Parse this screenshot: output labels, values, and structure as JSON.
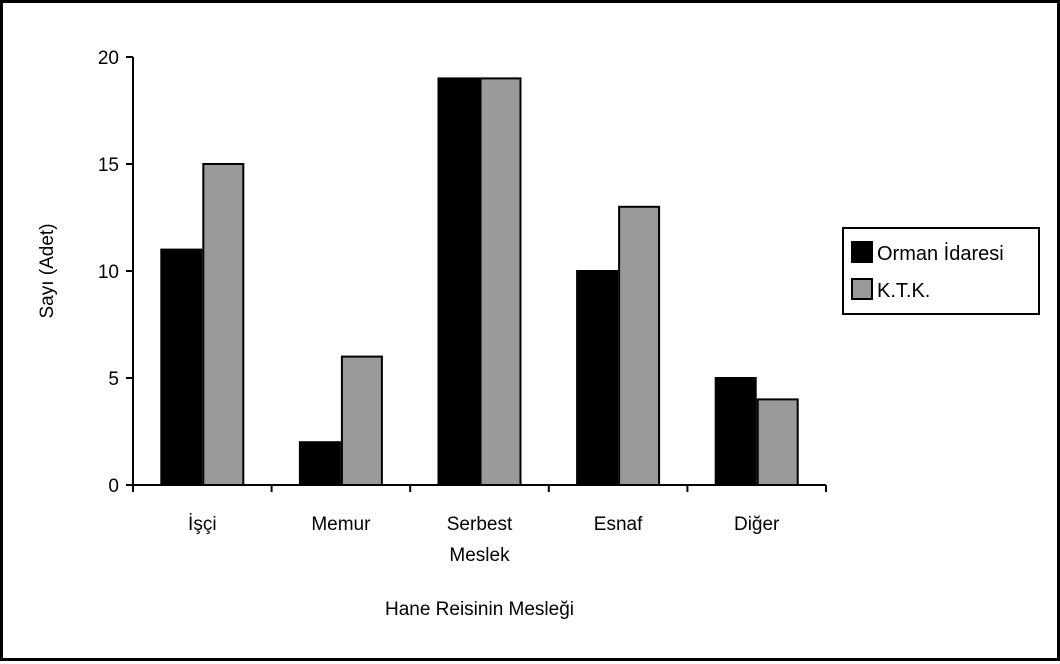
{
  "chart_data": {
    "type": "bar",
    "xlabel": "Hane Reisinin Mesleği",
    "ylabel": "Sayı (Adet)",
    "categories": [
      [
        "İşçi"
      ],
      [
        "Memur"
      ],
      [
        "Serbest",
        "Meslek"
      ],
      [
        "Esnaf"
      ],
      [
        "Diğer"
      ]
    ],
    "series": [
      {
        "name": "Orman İdaresi",
        "color": "#000000",
        "values": [
          11,
          2,
          19,
          10,
          5
        ]
      },
      {
        "name": "K.T.K.",
        "color": "#999999",
        "values": [
          15,
          6,
          19,
          13,
          4
        ]
      }
    ],
    "ylim": [
      0,
      20
    ],
    "yticks": [
      0,
      5,
      10,
      15,
      20
    ],
    "legend": "right",
    "grid": false
  }
}
